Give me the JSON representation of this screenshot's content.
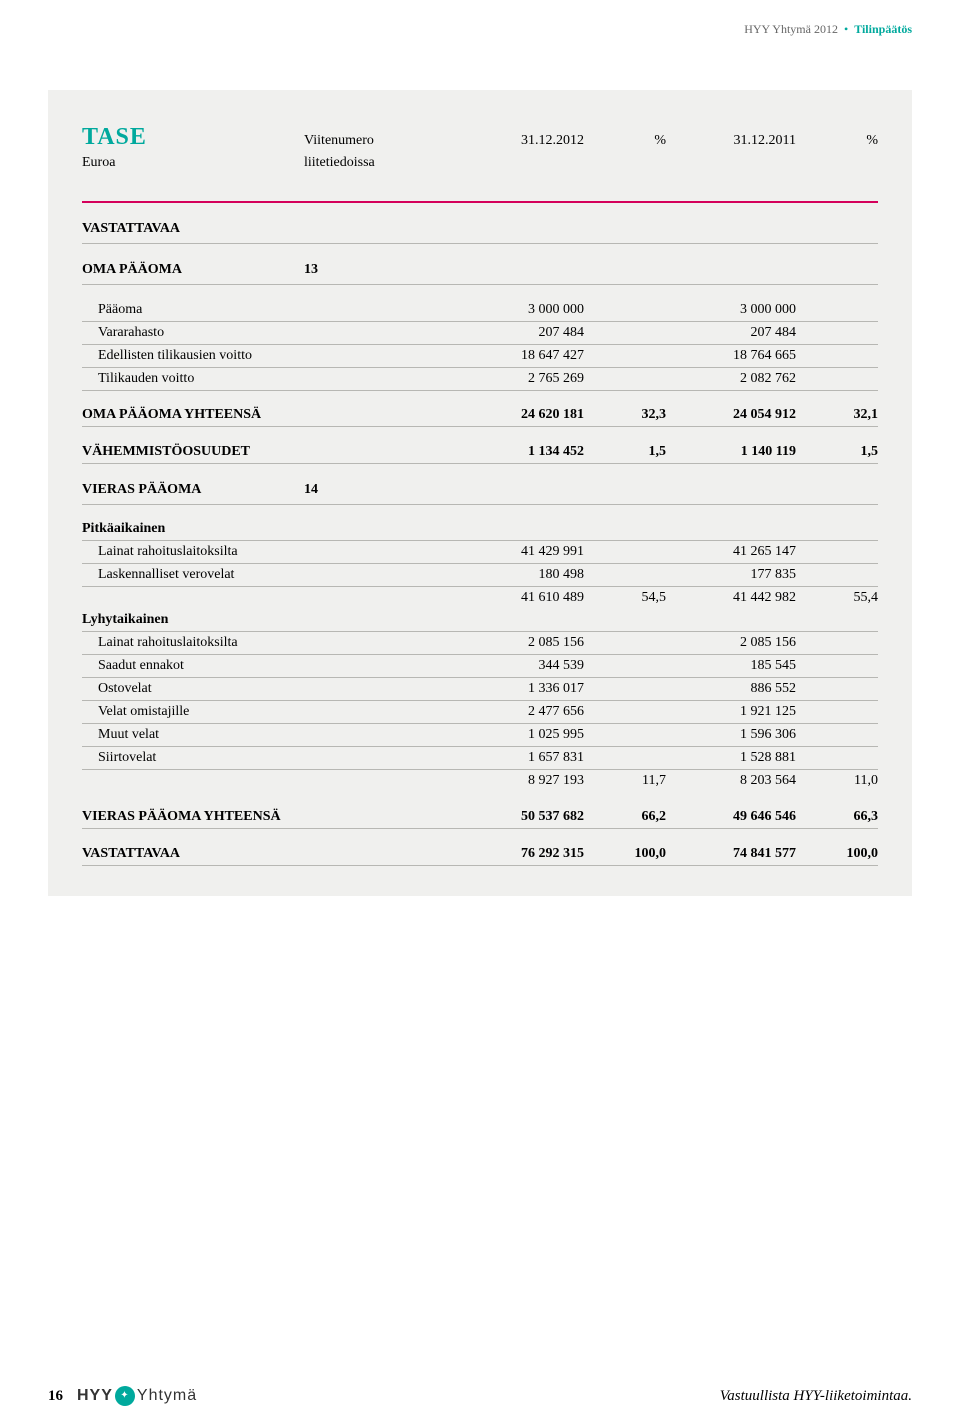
{
  "header": {
    "brand": "HYY Yhtymä 2012",
    "section": "Tilinpäätös"
  },
  "tase": {
    "title": "TASE",
    "col_viitenumero": "Viitenumero",
    "col_date1": "31.12.2012",
    "col_pct": "%",
    "col_date2": "31.12.2011",
    "euroa": "Euroa",
    "liitetiedoissa": "liitetiedoissa",
    "vastattavaa": "VASTATTAVAA",
    "oma_paaoma": {
      "label": "OMA PÄÄOMA",
      "vn": "13"
    },
    "rows1": [
      {
        "label": "Pääoma",
        "v1": "3 000 000",
        "v2": "3 000 000"
      },
      {
        "label": "Vararahasto",
        "v1": "207 484",
        "v2": "207 484"
      },
      {
        "label": "Edellisten tilikausien voitto",
        "v1": "18 647 427",
        "v2": "18 764 665"
      },
      {
        "label": "Tilikauden voitto",
        "v1": "2 765 269",
        "v2": "2 082 762"
      }
    ],
    "oma_paaoma_yht": {
      "label": "OMA PÄÄOMA YHTEENSÄ",
      "v1": "24 620 181",
      "p1": "32,3",
      "v2": "24 054 912",
      "p2": "32,1"
    },
    "vahemmisto": {
      "label": "VÄHEMMISTÖOSUUDET",
      "v1": "1 134 452",
      "p1": "1,5",
      "v2": "1 140 119",
      "p2": "1,5"
    },
    "vieras_paaoma": {
      "label": "VIERAS PÄÄOMA",
      "vn": "14"
    },
    "pitkaaikainen_label": "Pitkäaikainen",
    "pitka_rows": [
      {
        "label": "Lainat rahoituslaitoksilta",
        "v1": "41 429 991",
        "v2": "41 265 147"
      },
      {
        "label": "Laskennalliset verovelat",
        "v1": "180 498",
        "v2": "177 835"
      }
    ],
    "pitka_sub": {
      "v1": "41 610 489",
      "p1": "54,5",
      "v2": "41 442 982",
      "p2": "55,4"
    },
    "lyhytaikainen_label": "Lyhytaikainen",
    "lyhyt_rows": [
      {
        "label": "Lainat rahoituslaitoksilta",
        "v1": "2 085 156",
        "v2": "2 085 156"
      },
      {
        "label": "Saadut ennakot",
        "v1": "344 539",
        "v2": "185 545"
      },
      {
        "label": "Ostovelat",
        "v1": "1 336 017",
        "v2": "886 552"
      },
      {
        "label": "Velat omistajille",
        "v1": "2 477 656",
        "v2": "1 921 125"
      },
      {
        "label": "Muut velat",
        "v1": "1 025 995",
        "v2": "1 596 306"
      },
      {
        "label": "Siirtovelat",
        "v1": "1 657 831",
        "v2": "1 528 881"
      }
    ],
    "lyhyt_sub": {
      "v1": "8 927 193",
      "p1": "11,7",
      "v2": "8 203 564",
      "p2": "11,0"
    },
    "vieras_yht": {
      "label": "VIERAS PÄÄOMA YHTEENSÄ",
      "v1": "50 537 682",
      "p1": "66,2",
      "v2": "49 646 546",
      "p2": "66,3"
    },
    "vastattavaa_tot": {
      "label": "VASTATTAVAA",
      "v1": "76 292 315",
      "p1": "100,0",
      "v2": "74 841 577",
      "p2": "100,0"
    }
  },
  "footer": {
    "page": "16",
    "logo_h": "HYY",
    "logo_y": "Yhtymä",
    "tagline": "Vastuullista HYY-liiketoimintaa."
  },
  "colors": {
    "accent": "#00a99d",
    "rule": "#b7b7b3",
    "magenta": "#d4005a",
    "panel": "#f0f0ee"
  }
}
